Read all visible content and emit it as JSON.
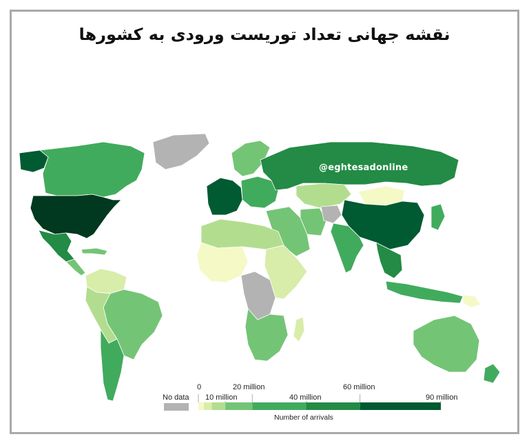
{
  "title": "نقشه جهانی تعداد توریست ورودی به کشورها",
  "watermark": "@eghtesadonline",
  "legend": {
    "no_data_label": "No data",
    "ticks": [
      "0",
      "10 million",
      "20 million",
      "40 million",
      "60 million",
      "90 million"
    ],
    "axis_title": "Number of arrivals",
    "bins": [
      {
        "from": 0,
        "to": 2,
        "color": "#f5f9c6"
      },
      {
        "from": 2,
        "to": 5,
        "color": "#d8edaa"
      },
      {
        "from": 5,
        "to": 10,
        "color": "#b2dd8e"
      },
      {
        "from": 10,
        "to": 20,
        "color": "#74c476"
      },
      {
        "from": 20,
        "to": 40,
        "color": "#41ab5d"
      },
      {
        "from": 40,
        "to": 60,
        "color": "#238b45"
      },
      {
        "from": 60,
        "to": 90,
        "color": "#005a32"
      }
    ],
    "no_data_color": "#b3b3b3"
  },
  "colors": {
    "ocean": "#ffffff",
    "border": "#ffffff",
    "frame": "#a9a9a9"
  },
  "regions": [
    {
      "name": "alaska",
      "color": "#005a32"
    },
    {
      "name": "canada",
      "color": "#41ab5d"
    },
    {
      "name": "greenland",
      "color": "#b3b3b3"
    },
    {
      "name": "usa",
      "color": "#00391f"
    },
    {
      "name": "mexico",
      "color": "#238b45"
    },
    {
      "name": "central-america",
      "color": "#74c476"
    },
    {
      "name": "caribbean",
      "color": "#74c476"
    },
    {
      "name": "colombia-venezuela",
      "color": "#d8edaa"
    },
    {
      "name": "brazil",
      "color": "#74c476"
    },
    {
      "name": "peru-bolivia",
      "color": "#b2dd8e"
    },
    {
      "name": "chile-argentina",
      "color": "#41ab5d"
    },
    {
      "name": "europe-west",
      "color": "#005a32"
    },
    {
      "name": "europe-east",
      "color": "#41ab5d"
    },
    {
      "name": "scandinavia",
      "color": "#74c476"
    },
    {
      "name": "russia",
      "color": "#238b45"
    },
    {
      "name": "kazakhstan",
      "color": "#b2dd8e"
    },
    {
      "name": "mongolia",
      "color": "#f5f9c6"
    },
    {
      "name": "china",
      "color": "#005a32"
    },
    {
      "name": "middle-east",
      "color": "#74c476"
    },
    {
      "name": "iran",
      "color": "#74c476"
    },
    {
      "name": "afghanistan",
      "color": "#b3b3b3"
    },
    {
      "name": "india",
      "color": "#41ab5d"
    },
    {
      "name": "southeast-asia",
      "color": "#238b45"
    },
    {
      "name": "indonesia",
      "color": "#41ab5d"
    },
    {
      "name": "japan",
      "color": "#41ab5d"
    },
    {
      "name": "north-africa",
      "color": "#b2dd8e"
    },
    {
      "name": "west-africa",
      "color": "#f5f9c6"
    },
    {
      "name": "central-africa",
      "color": "#b3b3b3"
    },
    {
      "name": "east-africa",
      "color": "#d8edaa"
    },
    {
      "name": "southern-africa",
      "color": "#74c476"
    },
    {
      "name": "madagascar",
      "color": "#d8edaa"
    },
    {
      "name": "australia",
      "color": "#74c476"
    },
    {
      "name": "new-zealand",
      "color": "#41ab5d"
    },
    {
      "name": "papua",
      "color": "#f5f9c6"
    }
  ]
}
